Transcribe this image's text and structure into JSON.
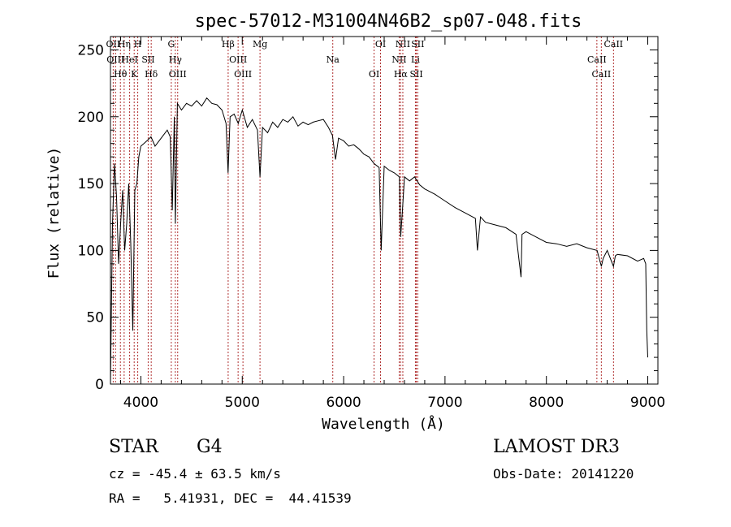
{
  "chart_data": {
    "type": "line",
    "title": "spec-57012-M31004N46B2_sp07-048.fits",
    "xlabel": "Wavelength (Å)",
    "ylabel": "Flux (relative)",
    "xlim": [
      3700,
      9100
    ],
    "ylim": [
      0,
      260
    ],
    "xticks": [
      4000,
      5000,
      6000,
      7000,
      8000,
      9000
    ],
    "yticks": [
      0,
      50,
      100,
      150,
      200,
      250
    ],
    "grid": false,
    "series": [
      {
        "name": "flux",
        "x": [
          3700,
          3720,
          3740,
          3760,
          3780,
          3800,
          3820,
          3840,
          3860,
          3880,
          3900,
          3920,
          3940,
          3960,
          3980,
          4000,
          4030,
          4060,
          4100,
          4140,
          4180,
          4220,
          4260,
          4290,
          4310,
          4330,
          4340,
          4360,
          4400,
          4450,
          4500,
          4550,
          4600,
          4650,
          4700,
          4750,
          4800,
          4840,
          4860,
          4880,
          4920,
          4960,
          5000,
          5050,
          5100,
          5150,
          5175,
          5200,
          5250,
          5300,
          5350,
          5400,
          5450,
          5500,
          5550,
          5600,
          5650,
          5700,
          5750,
          5800,
          5850,
          5890,
          5920,
          5950,
          6000,
          6050,
          6100,
          6150,
          6200,
          6250,
          6300,
          6350,
          6370,
          6400,
          6450,
          6500,
          6550,
          6563,
          6580,
          6600,
          6650,
          6700,
          6750,
          6800,
          6900,
          7000,
          7100,
          7200,
          7300,
          7320,
          7350,
          7400,
          7500,
          7600,
          7700,
          7750,
          7760,
          7800,
          7900,
          8000,
          8100,
          8200,
          8300,
          8400,
          8500,
          8542,
          8560,
          8600,
          8662,
          8680,
          8700,
          8800,
          8900,
          8960,
          8980,
          8990,
          9000
        ],
        "y": [
          0,
          120,
          165,
          140,
          90,
          120,
          145,
          100,
          120,
          150,
          105,
          40,
          145,
          150,
          170,
          178,
          180,
          182,
          185,
          178,
          182,
          186,
          190,
          185,
          130,
          200,
          120,
          210,
          205,
          210,
          208,
          212,
          208,
          214,
          210,
          209,
          205,
          195,
          158,
          200,
          202,
          195,
          205,
          192,
          198,
          190,
          155,
          192,
          188,
          196,
          192,
          198,
          196,
          200,
          193,
          196,
          194,
          196,
          197,
          198,
          192,
          186,
          168,
          184,
          182,
          178,
          179,
          176,
          172,
          170,
          165,
          162,
          100,
          163,
          160,
          158,
          155,
          110,
          130,
          155,
          152,
          155,
          149,
          146,
          142,
          137,
          132,
          128,
          124,
          100,
          125,
          121,
          119,
          117,
          112,
          80,
          112,
          114,
          110,
          106,
          105,
          103,
          105,
          102,
          100,
          88,
          94,
          100,
          88,
          96,
          97,
          96,
          92,
          94,
          90,
          40,
          20
        ]
      }
    ],
    "line_markers": [
      {
        "wavelength": 3727,
        "label": "OII"
      },
      {
        "wavelength": 3750,
        "label": "OIII"
      },
      {
        "wavelength": 3798,
        "label": "Hθ"
      },
      {
        "wavelength": 3835,
        "label": "Hη"
      },
      {
        "wavelength": 3889,
        "label": "HeI"
      },
      {
        "wavelength": 3934,
        "label": "K"
      },
      {
        "wavelength": 3969,
        "label": "H"
      },
      {
        "wavelength": 4072,
        "label": "SII"
      },
      {
        "wavelength": 4102,
        "label": "Hδ"
      },
      {
        "wavelength": 4300,
        "label": "G"
      },
      {
        "wavelength": 4340,
        "label": "Hγ"
      },
      {
        "wavelength": 4363,
        "label": "OIII"
      },
      {
        "wavelength": 4861,
        "label": "Hβ"
      },
      {
        "wavelength": 4959,
        "label": "OIII"
      },
      {
        "wavelength": 5007,
        "label": "OIII"
      },
      {
        "wavelength": 5175,
        "label": "Mg"
      },
      {
        "wavelength": 5893,
        "label": "Na"
      },
      {
        "wavelength": 6300,
        "label": "OI"
      },
      {
        "wavelength": 6364,
        "label": "OI"
      },
      {
        "wavelength": 6548,
        "label": "NII"
      },
      {
        "wavelength": 6563,
        "label": "Hα"
      },
      {
        "wavelength": 6584,
        "label": "NII"
      },
      {
        "wavelength": 6708,
        "label": "Li"
      },
      {
        "wavelength": 6717,
        "label": "SII"
      },
      {
        "wavelength": 6731,
        "label": "SII"
      },
      {
        "wavelength": 8498,
        "label": "CaII"
      },
      {
        "wavelength": 8542,
        "label": "CaII"
      },
      {
        "wavelength": 8662,
        "label": "CaII"
      }
    ],
    "marker_color": "#b03030"
  },
  "info": {
    "object_class": "STAR",
    "subclass": "G4",
    "survey": "LAMOST DR3",
    "redshift": "cz = -45.4 ± 63.5 km/s",
    "obs_date": "Obs-Date: 20141220",
    "coords": "RA =   5.41931, DEC =  44.41539"
  }
}
